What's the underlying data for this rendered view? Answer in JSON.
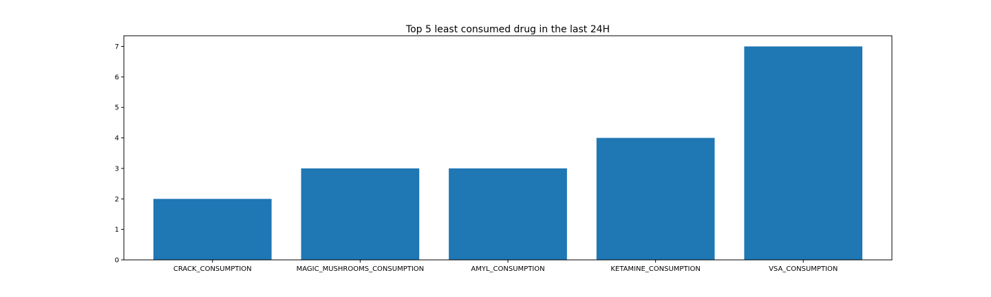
{
  "chart_data": {
    "type": "bar",
    "title": "Top 5 least consumed drug in the last 24H",
    "xlabel": "",
    "ylabel": "",
    "categories": [
      "CRACK_CONSUMPTION",
      "MAGIC_MUSHROOMS_CONSUMPTION",
      "AMYL_CONSUMPTION",
      "KETAMINE_CONSUMPTION",
      "VSA_CONSUMPTION"
    ],
    "values": [
      2,
      3,
      3,
      4,
      7
    ],
    "ylim": [
      0,
      7.35
    ],
    "yticks": [
      0,
      1,
      2,
      3,
      4,
      5,
      6,
      7
    ],
    "bar_color": "#1f77b4",
    "grid": false,
    "legend": "none"
  }
}
